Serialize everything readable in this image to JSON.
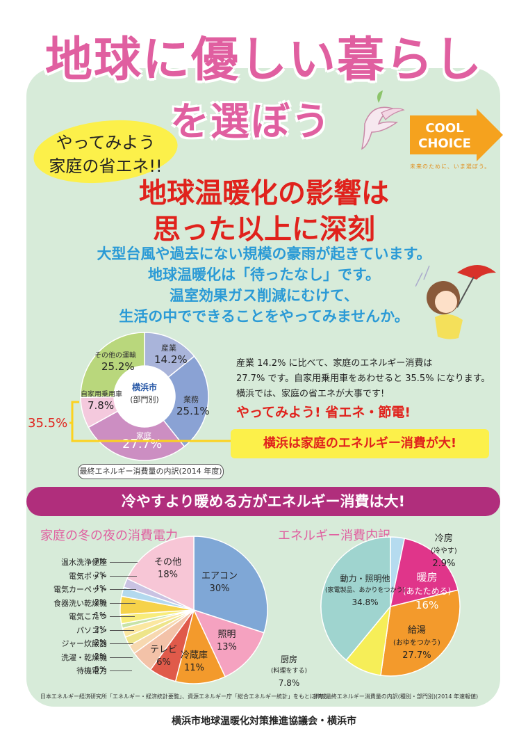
{
  "title_line1": "地球に優しい暮らし",
  "title_line2": "を選ぼう",
  "badge": {
    "line1": "やってみよう",
    "line2": "家庭の省エネ!!"
  },
  "logo": {
    "line1": "COOL",
    "line2": "CHOICE",
    "tagline": "未来のために、いま選ぼう。"
  },
  "headline": {
    "line1": "地球温暖化の影響は",
    "line2": "思った以上に深刻"
  },
  "lead": [
    "大型台風や過去にない規模の豪雨が起きています。",
    "地球温暖化は「待ったなし」です。",
    "温室効果ガス削減にむけて、",
    "生活の中でできることをやってみませんか。"
  ],
  "description": [
    "産業 14.2% に比べて、家庭のエネルギー消費は",
    "27.7% です。自家用乗用車をあわせると 35.5% になります。",
    "横浜では、家庭の省エネが大事です!"
  ],
  "action": "やってみよう! 省エネ・節電!",
  "highlight": "横浜は家庭のエネルギー消費が大!",
  "combined_label": "35.5%",
  "banner": "冷やすより暖める方がエネルギー消費は大!",
  "footer": "横浜市地球温暖化対策推進協議会・横浜市",
  "colors": {
    "pink": "#e05fa0",
    "red": "#e0221c",
    "blue": "#2a9ad6",
    "panel": "#d7ebd9",
    "banner": "#b02e7c"
  },
  "icons": [
    "bird-icon",
    "girl-umbrella-illustration",
    "cool-choice-arrow-icon"
  ],
  "chart_data": [
    {
      "type": "pie",
      "center_label": {
        "line1": "横浜市",
        "line2": "(部門別)"
      },
      "caption": "最終エネルギー消費量の内訳(2014 年度)",
      "slices": [
        {
          "label": "産業",
          "value": 14.2,
          "display": "14.2%",
          "color": "#a9b4da"
        },
        {
          "label": "業務",
          "value": 25.1,
          "display": "25.1%",
          "color": "#8aa2d4"
        },
        {
          "label": "家庭",
          "value": 27.7,
          "display": "27.7%",
          "color": "#cc8ec2"
        },
        {
          "label": "自家用乗用車",
          "value": 7.8,
          "display": "7.8%",
          "color": "#f4c9dd"
        },
        {
          "label": "その他の運輸",
          "value": 25.2,
          "display": "25.2%",
          "color": "#b9d77c"
        }
      ]
    },
    {
      "type": "pie",
      "title": "家庭の冬の夜の消費電力",
      "note": "日本エネルギー経済研究所「エネルギー・経済統計要覧」、資源エネルギー庁「総合エネルギー統計」をもとに作成",
      "slices": [
        {
          "label": "エアコン",
          "value": 30,
          "display": "30%",
          "color": "#7fa7d6"
        },
        {
          "label": "照明",
          "value": 13,
          "display": "13%",
          "color": "#f5a2c0"
        },
        {
          "label": "冷蔵庫",
          "value": 11,
          "display": "11%",
          "color": "#f39a2c"
        },
        {
          "label": "テレビ",
          "value": 6,
          "display": "6%",
          "color": "#e05a4a"
        },
        {
          "label": "待機電力",
          "value": 5,
          "display": "5%",
          "color": "#f3c2a8"
        },
        {
          "label": "洗濯・乾燥機",
          "value": 2,
          "display": "2%",
          "color": "#f7d8b0"
        },
        {
          "label": "ジャー炊飯器",
          "value": 2,
          "display": "2%",
          "color": "#eee58a"
        },
        {
          "label": "パソコン",
          "value": 2,
          "display": "2%",
          "color": "#fbe7a0"
        },
        {
          "label": "電気こたつ",
          "value": 1,
          "display": "1%",
          "color": "#c7e3a8"
        },
        {
          "label": "食器洗い乾燥機",
          "value": 2,
          "display": "2%",
          "color": "#f8ec7a"
        },
        {
          "label": "電気カーペット",
          "value": 4,
          "display": "4%",
          "color": "#f6d24a"
        },
        {
          "label": "電気ポット",
          "value": 2,
          "display": "2%",
          "color": "#b3d9ee"
        },
        {
          "label": "温水洗浄便座",
          "value": 2,
          "display": "2%",
          "color": "#c9c2e2"
        },
        {
          "label": "その他",
          "value": 18,
          "display": "18%",
          "color": "#f7c6d6"
        }
      ]
    },
    {
      "type": "pie",
      "title": "エネルギー消費内訳",
      "note": "参考:最終エネルギー消費量の内訳(種別・部門別)(2014 年速報値)",
      "slices": [
        {
          "label": "冷房",
          "sublabel": "(冷やす)",
          "value": 2.9,
          "display": "2.9%",
          "color": "#b5dbef"
        },
        {
          "label": "暖房",
          "sublabel": "(あたためる)",
          "value": 16,
          "display": "16%",
          "color": "#e0358a"
        },
        {
          "label": "給湯",
          "sublabel": "(おゆをつかう)",
          "value": 27.7,
          "display": "27.7%",
          "color": "#f39a2c"
        },
        {
          "label": "厨房",
          "sublabel": "(料理をする)",
          "value": 7.8,
          "display": "7.8%",
          "color": "#f6ee58"
        },
        {
          "label": "動力・照明他",
          "sublabel": "(家電製品、あかりをつかう)",
          "value": 34.8,
          "display": "34.8%",
          "color": "#9fd4cf"
        }
      ]
    }
  ]
}
